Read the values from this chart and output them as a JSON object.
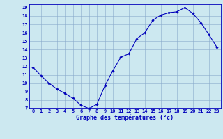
{
  "x": [
    0,
    1,
    2,
    3,
    4,
    5,
    6,
    7,
    8,
    9,
    10,
    11,
    12,
    13,
    14,
    15,
    16,
    17,
    18,
    19,
    20,
    21,
    22,
    23
  ],
  "y": [
    11.9,
    10.9,
    10.0,
    9.3,
    8.8,
    8.2,
    7.4,
    7.0,
    7.5,
    9.7,
    11.5,
    13.1,
    13.5,
    15.3,
    16.0,
    17.5,
    18.1,
    18.4,
    18.5,
    19.0,
    18.3,
    17.2,
    15.8,
    14.3
  ],
  "xlim": [
    -0.5,
    23.5
  ],
  "ylim": [
    7,
    19.4
  ],
  "yticks": [
    7,
    8,
    9,
    10,
    11,
    12,
    13,
    14,
    15,
    16,
    17,
    18,
    19
  ],
  "xticks": [
    0,
    1,
    2,
    3,
    4,
    5,
    6,
    7,
    8,
    9,
    10,
    11,
    12,
    13,
    14,
    15,
    16,
    17,
    18,
    19,
    20,
    21,
    22,
    23
  ],
  "line_color": "#0000bb",
  "marker_color": "#0000bb",
  "bg_color": "#cce8f0",
  "grid_color": "#88aacc",
  "xlabel": "Graphe des températures (°c)",
  "xlabel_color": "#0000bb",
  "tick_color": "#0000bb",
  "label_fontsize": 6.0,
  "tick_fontsize": 5.0
}
